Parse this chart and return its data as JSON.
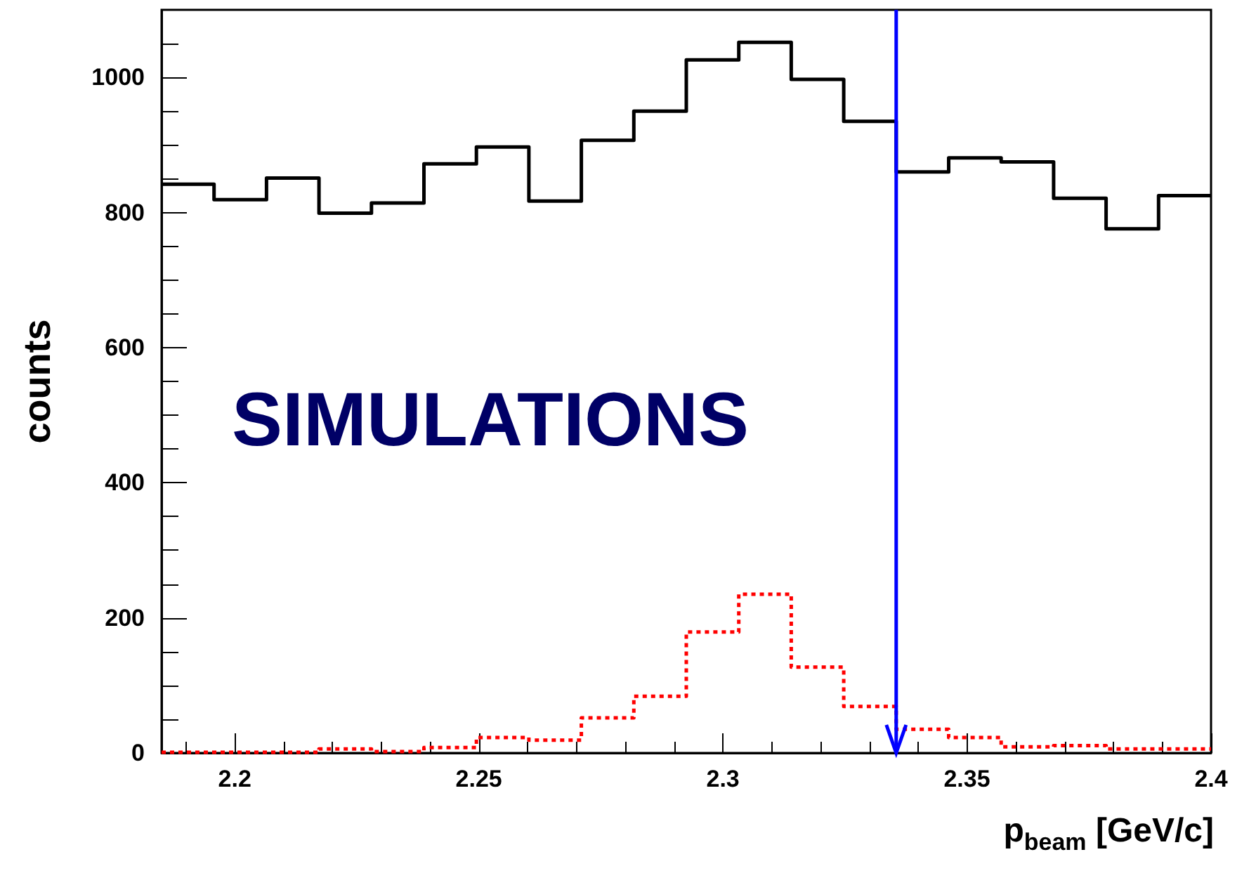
{
  "chart_data": {
    "type": "histogram",
    "xlabel": "p$_{beam}$ [GeV/c]",
    "ylabel": "counts",
    "bins": [
      2.185,
      2.19575,
      2.2065,
      2.21725,
      2.228,
      2.23875,
      2.2495,
      2.26025,
      2.271,
      2.28175,
      2.2925,
      2.30325,
      2.314,
      2.32475,
      2.3355,
      2.34625,
      2.357,
      2.36775,
      2.3785,
      2.38925,
      2.4
    ],
    "series": [
      {
        "color": "#000000",
        "line_style": "solid",
        "values": [
          842,
          819,
          851,
          799,
          814,
          872,
          897,
          817,
          907,
          950,
          1026,
          1052,
          997,
          935,
          860,
          881,
          875,
          821,
          776,
          825
        ]
      },
      {
        "color": "#ff0000",
        "line_style": "dotted",
        "values": [
          1,
          1,
          1,
          6,
          2,
          8,
          23,
          19,
          52,
          84,
          179,
          235,
          127,
          69,
          35,
          23,
          9,
          11,
          6,
          6
        ]
      }
    ],
    "xlim": [
      2.185,
      2.4
    ],
    "xticks": [
      2.2,
      2.25,
      2.3,
      2.35,
      2.4
    ],
    "ylim": [
      0,
      1100
    ],
    "yticks": [
      0,
      200,
      400,
      600,
      800,
      1000
    ],
    "grid": false,
    "ref_lines": [
      {
        "axis": "x",
        "value": 2.3355,
        "color": "#0000ff"
      }
    ],
    "annotations": [
      "SIMULATIONS"
    ]
  }
}
